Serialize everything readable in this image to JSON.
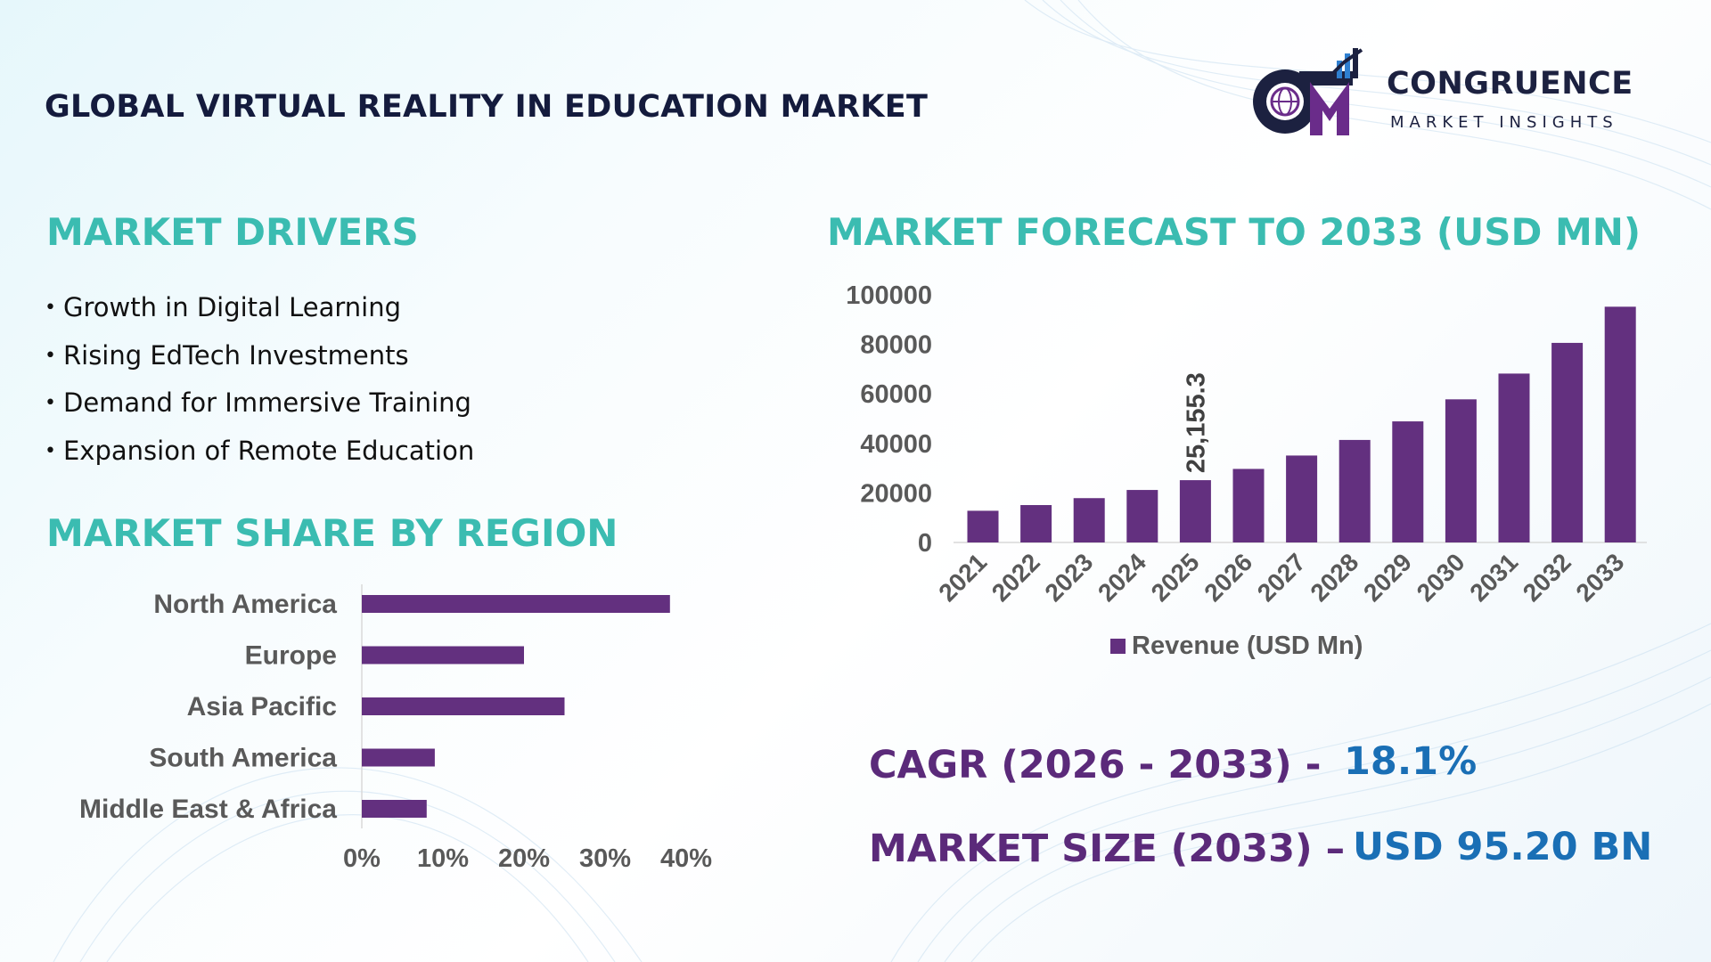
{
  "title": "GLOBAL VIRTUAL REALITY IN EDUCATION MARKET",
  "logo": {
    "name": "CONGRUENCE",
    "subtitle": "MARKET INSIGHTS",
    "mark": "CM"
  },
  "colors": {
    "accent_heading": "#3bbcb1",
    "bar": "#63307f",
    "kpi_label": "#5b2a7a",
    "kpi_value": "#1a6fb5",
    "title": "#141b3d"
  },
  "drivers": {
    "heading": "MARKET DRIVERS",
    "items": [
      "Growth in Digital Learning",
      "Rising EdTech Investments",
      "Demand for Immersive Training",
      "Expansion of Remote Education"
    ]
  },
  "regions": {
    "heading": "MARKET SHARE BY REGION"
  },
  "forecast": {
    "heading": "MARKET FORECAST TO 2033 (USD MN)"
  },
  "kpis": {
    "cagr_label": "CAGR (2026 - 2033) -",
    "cagr_value": "18.1%",
    "size_label": "MARKET SIZE (2033) –",
    "size_value": "USD 95.20 BN"
  },
  "chart_data": [
    {
      "type": "bar",
      "orientation": "horizontal",
      "categories": [
        "North America",
        "Europe",
        "Asia Pacific",
        "South America",
        "Middle East & Africa"
      ],
      "values": [
        38,
        20,
        25,
        9,
        8
      ],
      "xlim": [
        0,
        40
      ],
      "xticks": [
        "0%",
        "10%",
        "20%",
        "30%",
        "40%"
      ],
      "grid": false
    },
    {
      "type": "bar",
      "categories": [
        "2021",
        "2022",
        "2023",
        "2024",
        "2025",
        "2026",
        "2027",
        "2028",
        "2029",
        "2030",
        "2031",
        "2032",
        "2033"
      ],
      "series": [
        {
          "name": "Revenue (USD Mn)",
          "values": [
            12800,
            15100,
            17900,
            21200,
            25155.3,
            29700,
            35100,
            41400,
            48900,
            57800,
            68200,
            80600,
            95200
          ]
        }
      ],
      "ylim": [
        0,
        100000
      ],
      "yticks": [
        "0",
        "20000",
        "40000",
        "60000",
        "80000",
        "100000"
      ],
      "annotations": [
        {
          "category": "2025",
          "text": "25,155.3"
        }
      ],
      "legend": "bottom",
      "grid": false
    }
  ]
}
